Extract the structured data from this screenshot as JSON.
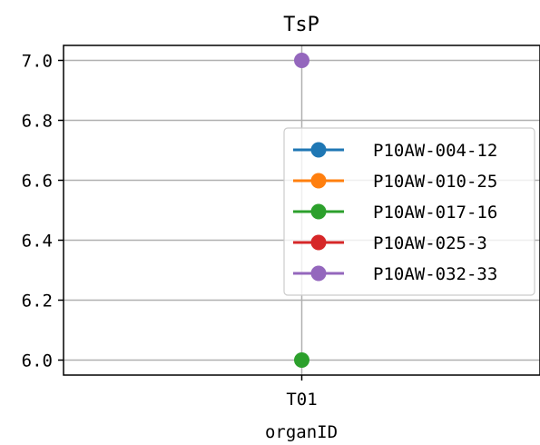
{
  "chart_data": {
    "type": "line",
    "title": "TsP",
    "xlabel": "organID",
    "ylabel": "",
    "categories": [
      "T01"
    ],
    "ylim": [
      5.95,
      7.05
    ],
    "yticks": [
      "6.0",
      "6.2",
      "6.4",
      "6.6",
      "6.8",
      "7.0"
    ],
    "grid": true,
    "legend_position": "center-right",
    "series": [
      {
        "name": "P10AW-004-12",
        "color": "#1f77b4",
        "values": [
          null
        ]
      },
      {
        "name": "P10AW-010-25",
        "color": "#ff7f0e",
        "values": [
          null
        ]
      },
      {
        "name": "P10AW-017-16",
        "color": "#2ca02c",
        "values": [
          6.0
        ]
      },
      {
        "name": "P10AW-025-3",
        "color": "#d62728",
        "values": [
          null
        ]
      },
      {
        "name": "P10AW-032-33",
        "color": "#9467bd",
        "values": [
          7.0
        ]
      }
    ]
  }
}
